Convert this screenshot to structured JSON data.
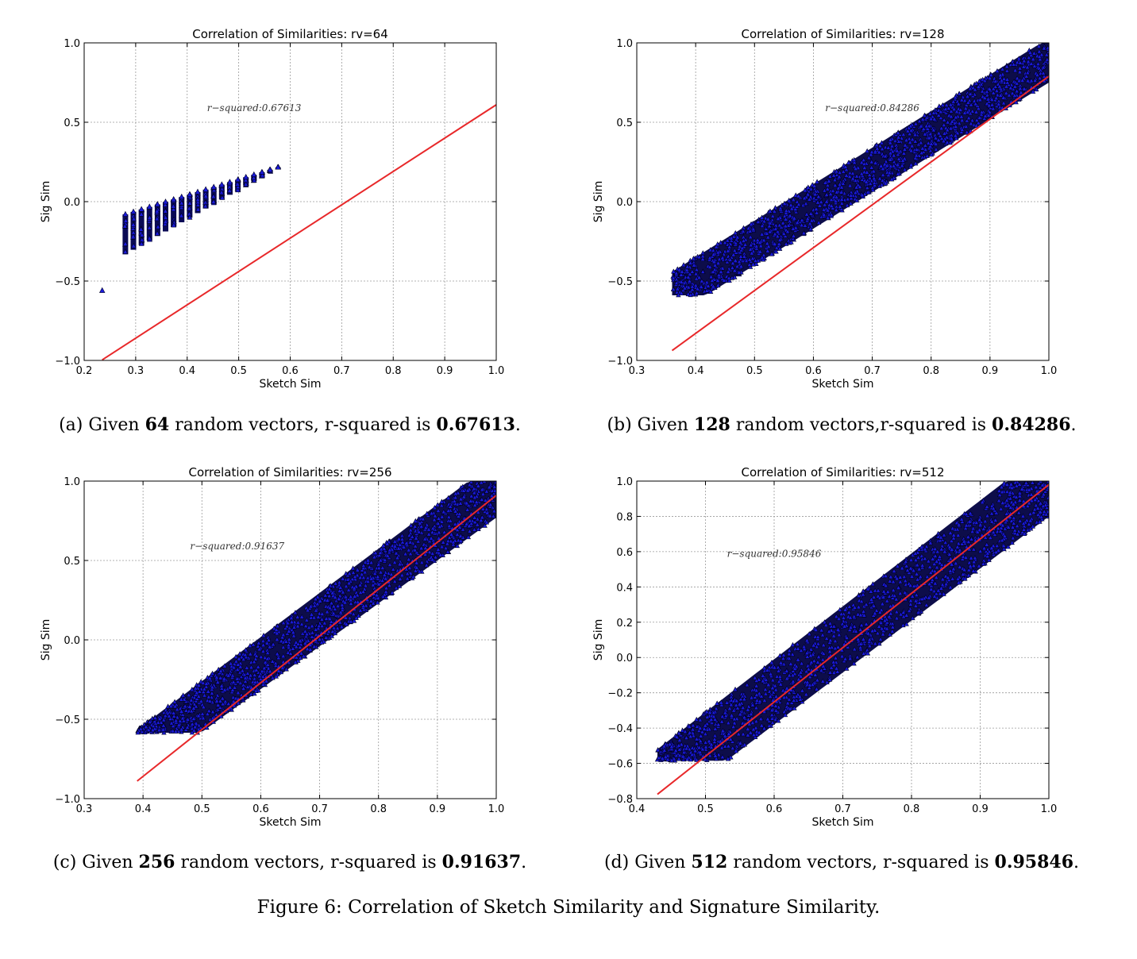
{
  "chart_data": [
    {
      "type": "scatter",
      "title": "Correlation of Similarities: rv=64",
      "xlabel": "Sketch Sim",
      "ylabel": "Sig Sim",
      "xlim": [
        0.2,
        1.0
      ],
      "ylim": [
        -1.0,
        1.0
      ],
      "xticks": [
        "0.2",
        "0.3",
        "0.4",
        "0.5",
        "0.6",
        "0.7",
        "0.8",
        "0.9",
        "1.0"
      ],
      "yticks": [
        "−1.0",
        "−0.5",
        "0.0",
        "0.5",
        "1.0"
      ],
      "grid": true,
      "annotation": "r−squared:0.67613",
      "points_band": {
        "x_start": 0.28,
        "x_end": 1.0,
        "lower_intercept": -0.36,
        "lower_slope": 1.0,
        "upper_intercept": -0.85,
        "upper_slope": 1.85,
        "floor": -0.59,
        "ceiling": 1.0,
        "discrete_step": 0.0156
      },
      "fit_line": {
        "slope": 2.1,
        "intercept": -1.49,
        "x_range": [
          0.235,
          1.0
        ]
      },
      "outliers": [
        [
          0.235,
          -0.56
        ]
      ],
      "caption_parts": {
        "pre": "(a) Given ",
        "n": "64",
        "mid": " random vectors, r-squared is ",
        "r2": "0.67613",
        "post": "."
      }
    },
    {
      "type": "scatter",
      "title": "Correlation of Similarities: rv=128",
      "xlabel": "Sketch Sim",
      "ylabel": "Sig Sim",
      "xlim": [
        0.3,
        1.0
      ],
      "ylim": [
        -1.0,
        1.0
      ],
      "xticks": [
        "0.3",
        "0.4",
        "0.5",
        "0.6",
        "0.7",
        "0.8",
        "0.9",
        "1.0"
      ],
      "yticks": [
        "−1.0",
        "−0.5",
        "0.0",
        "0.5",
        "1.0"
      ],
      "grid": true,
      "annotation": "r−squared:0.84286",
      "points_band": {
        "x_start": 0.36,
        "x_end": 1.0,
        "lower_intercept": -1.52,
        "lower_slope": 2.3,
        "upper_intercept": -1.3,
        "upper_slope": 2.3,
        "floor": -0.59,
        "ceiling": 1.0,
        "discrete_step": 0
      },
      "fit_line": {
        "slope": 2.7,
        "intercept": -1.91,
        "x_range": [
          0.36,
          1.0
        ]
      },
      "outliers": [],
      "caption_parts": {
        "pre": "(b) Given ",
        "n": "128",
        "mid": " random vectors,r-squared is ",
        "r2": "0.84286",
        "post": "."
      }
    },
    {
      "type": "scatter",
      "title": "Correlation of Similarities: rv=256",
      "xlabel": "Sketch Sim",
      "ylabel": "Sig Sim",
      "xlim": [
        0.3,
        1.0
      ],
      "ylim": [
        -1.0,
        1.0
      ],
      "xticks": [
        "0.3",
        "0.4",
        "0.5",
        "0.6",
        "0.7",
        "0.8",
        "0.9",
        "1.0"
      ],
      "yticks": [
        "−1.0",
        "−0.5",
        "0.0",
        "0.5",
        "1.0"
      ],
      "grid": true,
      "annotation": "r−squared:0.91637",
      "points_band": {
        "x_start": 0.39,
        "x_end": 1.0,
        "lower_intercept": -1.9,
        "lower_slope": 2.78,
        "upper_intercept": -1.68,
        "upper_slope": 2.7,
        "floor": -0.585,
        "ceiling": 1.0,
        "discrete_step": 0
      },
      "fit_line": {
        "slope": 2.95,
        "intercept": -2.04,
        "x_range": [
          0.39,
          1.0
        ]
      },
      "outliers": [],
      "caption_parts": {
        "pre": "(c) Given ",
        "n": "256",
        "mid": " random vectors, r-squared is ",
        "r2": "0.91637",
        "post": "."
      }
    },
    {
      "type": "scatter",
      "title": "Correlation of Similarities: rv=512",
      "xlabel": "Sketch Sim",
      "ylabel": "Sig Sim",
      "xlim": [
        0.4,
        1.0
      ],
      "ylim": [
        -0.8,
        1.0
      ],
      "xticks": [
        "0.4",
        "0.5",
        "0.6",
        "0.7",
        "0.8",
        "0.9",
        "1.0"
      ],
      "yticks": [
        "−0.8",
        "−0.6",
        "−0.4",
        "−0.2",
        "0.0",
        "0.2",
        "0.4",
        "0.6",
        "0.8",
        "1.0"
      ],
      "grid": true,
      "annotation": "r−squared:0.95846",
      "points_band": {
        "x_start": 0.43,
        "x_end": 1.0,
        "lower_intercept": -2.06,
        "lower_slope": 3.0,
        "upper_intercept": -1.9,
        "upper_slope": 2.95,
        "floor": -0.585,
        "ceiling": 1.0,
        "discrete_step": 0
      },
      "fit_line": {
        "slope": 3.08,
        "intercept": -2.1,
        "x_range": [
          0.43,
          1.0
        ]
      },
      "outliers": [],
      "caption_parts": {
        "pre": "(d) Given ",
        "n": "512",
        "mid": " random vectors, r-squared is ",
        "r2": "0.95846",
        "post": "."
      }
    }
  ],
  "colors": {
    "marker_fill": "#1a1adb",
    "marker_edge": "#000022",
    "fit_line": "#e8282a",
    "grid": "#9a9a9a"
  },
  "figure_caption": "Figure 6: Correlation of Sketch Similarity and Signature Similarity."
}
